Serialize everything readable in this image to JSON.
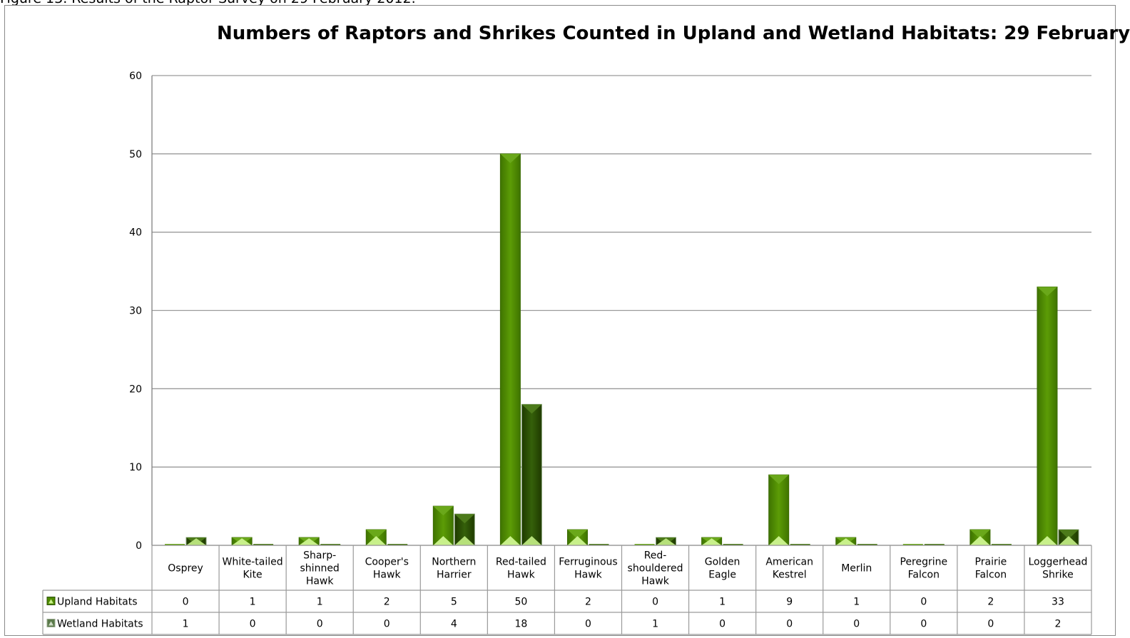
{
  "caption": "Figure 13. Results of the Raptor Survey on 29 February 2012.",
  "chart_data": {
    "type": "bar",
    "title": "Numbers of Raptors and Shrikes Counted in Upland and Wetland Habitats: 29 February",
    "xlabel": "",
    "ylabel": "",
    "ylim": [
      0,
      60
    ],
    "yticks": [
      0,
      10,
      20,
      30,
      40,
      50,
      60
    ],
    "grid": true,
    "legend": "data-table-left",
    "categories": [
      [
        "Osprey"
      ],
      [
        "White-tailed",
        "Kite"
      ],
      [
        "Sharp-",
        "shinned",
        "Hawk"
      ],
      [
        "Cooper's",
        "Hawk"
      ],
      [
        "Northern",
        "Harrier"
      ],
      [
        "Red-tailed",
        "Hawk"
      ],
      [
        "Ferruginous",
        "Hawk"
      ],
      [
        "Red-",
        "shouldered",
        "Hawk"
      ],
      [
        "Golden",
        "Eagle"
      ],
      [
        "American",
        "Kestrel"
      ],
      [
        "Merlin"
      ],
      [
        "Peregrine",
        "Falcon"
      ],
      [
        "Prairie",
        "Falcon"
      ],
      [
        "Loggerhead",
        "Shrike"
      ]
    ],
    "series": [
      {
        "name": "Upland Habitats",
        "color": "#4e8a00",
        "values": [
          0,
          1,
          1,
          2,
          5,
          50,
          2,
          0,
          1,
          9,
          1,
          0,
          2,
          33
        ]
      },
      {
        "name": "Wetland Habitats",
        "color": "#2e5200",
        "values": [
          1,
          0,
          0,
          0,
          4,
          18,
          0,
          1,
          0,
          0,
          0,
          0,
          0,
          2
        ]
      }
    ]
  }
}
